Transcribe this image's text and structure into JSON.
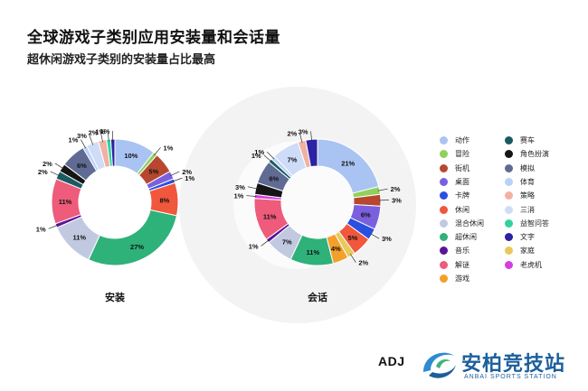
{
  "header": {
    "title": "全球游戏子类别应用安装量和会话量",
    "subtitle": "超休闲游戏子类别的安装量占比最高"
  },
  "legend": [
    {
      "label": "动作",
      "color": "#a9c4f2"
    },
    {
      "label": "赛车",
      "color": "#1a5b63"
    },
    {
      "label": "冒险",
      "color": "#8fd15c"
    },
    {
      "label": "角色扮演",
      "color": "#151515"
    },
    {
      "label": "街机",
      "color": "#b8472f"
    },
    {
      "label": "模拟",
      "color": "#5f6b93"
    },
    {
      "label": "桌面",
      "color": "#7a60de"
    },
    {
      "label": "体育",
      "color": "#b9d0f7"
    },
    {
      "label": "卡牌",
      "color": "#2950e0"
    },
    {
      "label": "策略",
      "color": "#f2b1a3"
    },
    {
      "label": "休闲",
      "color": "#f0573c"
    },
    {
      "label": "三消",
      "color": "#cfdcf7"
    },
    {
      "label": "混合休闲",
      "color": "#c1c9e1"
    },
    {
      "label": "益智问答",
      "color": "#2fd39d"
    },
    {
      "label": "超休闲",
      "color": "#2fb17a"
    },
    {
      "label": "文字",
      "color": "#2c22a3"
    },
    {
      "label": "音乐",
      "color": "#5a1498"
    },
    {
      "label": "家庭",
      "color": "#e7c95c"
    },
    {
      "label": "解谜",
      "color": "#ee5b7b"
    },
    {
      "label": "老虎机",
      "color": "#d63ee0"
    },
    {
      "label": "游戏",
      "color": "#f2a02b"
    }
  ],
  "chart_data": [
    {
      "type": "pie",
      "variant": "donut",
      "label": "安装",
      "slices": [
        {
          "name": "动作",
          "value": 10,
          "label": "10%",
          "color": "#a9c4f2"
        },
        {
          "name": "冒险",
          "value": 1,
          "label": "1%",
          "color": "#8fd15c"
        },
        {
          "name": "街机",
          "value": 5,
          "label": "5%",
          "color": "#b8472f"
        },
        {
          "name": "桌面",
          "value": 2,
          "label": "2%",
          "color": "#7a60de"
        },
        {
          "name": "卡牌",
          "value": 1,
          "label": "1%",
          "color": "#2950e0"
        },
        {
          "name": "休闲",
          "value": 8,
          "label": "8%",
          "color": "#f0573c"
        },
        {
          "name": "超休闲",
          "value": 27,
          "label": "27%",
          "color": "#2fb17a"
        },
        {
          "name": "混合休闲",
          "value": 11,
          "label": "11%",
          "color": "#c1c9e1"
        },
        {
          "name": "音乐",
          "value": 1,
          "label": "1%",
          "color": "#5a1498"
        },
        {
          "name": "解谜",
          "value": 11,
          "label": "11%",
          "color": "#ee5b7b"
        },
        {
          "name": "赛车",
          "value": 2,
          "label": "2%",
          "color": "#1a5b63"
        },
        {
          "name": "角色扮演",
          "value": 2,
          "label": "2%",
          "color": "#151515"
        },
        {
          "name": "模拟",
          "value": 6,
          "label": "6%",
          "color": "#5f6b93"
        },
        {
          "name": "体育",
          "value": 1,
          "label": "1%",
          "color": "#b9d0f7"
        },
        {
          "name": "三消",
          "value": 3,
          "label": "3%",
          "color": "#cfdcf7"
        },
        {
          "name": "策略",
          "value": 2,
          "label": "2%",
          "color": "#f2b1a3"
        },
        {
          "name": "益智问答",
          "value": 1,
          "label": "1%",
          "color": "#2fd39d"
        },
        {
          "name": "文字",
          "value": 1,
          "label": "1%",
          "color": "#2c22a3"
        }
      ]
    },
    {
      "type": "pie",
      "variant": "donut",
      "label": "会话",
      "slices": [
        {
          "name": "动作",
          "value": 21,
          "label": "21%",
          "color": "#a9c4f2"
        },
        {
          "name": "冒险",
          "value": 2,
          "label": "2%",
          "color": "#8fd15c"
        },
        {
          "name": "街机",
          "value": 3,
          "label": "3%",
          "color": "#b8472f"
        },
        {
          "name": "桌面",
          "value": 6,
          "label": "6%",
          "color": "#7a60de"
        },
        {
          "name": "卡牌",
          "value": 3,
          "label": "3%",
          "color": "#2950e0"
        },
        {
          "name": "休闲",
          "value": 5,
          "label": "5%",
          "color": "#f0573c"
        },
        {
          "name": "家庭",
          "value": 2,
          "label": "2%",
          "color": "#e7c95c"
        },
        {
          "name": "游戏",
          "value": 4,
          "label": "4%",
          "color": "#f2a02b"
        },
        {
          "name": "超休闲",
          "value": 11,
          "label": "11%",
          "color": "#2fb17a"
        },
        {
          "name": "混合休闲",
          "value": 7,
          "label": "7%",
          "color": "#c1c9e1"
        },
        {
          "name": "音乐",
          "value": 1,
          "label": "1%",
          "color": "#5a1498"
        },
        {
          "name": "解谜",
          "value": 11,
          "label": "11%",
          "color": "#ee5b7b"
        },
        {
          "name": "老虎机",
          "value": 1,
          "label": "1%",
          "color": "#d63ee0"
        },
        {
          "name": "角色扮演",
          "value": 3,
          "label": "3%",
          "color": "#151515"
        },
        {
          "name": "模拟",
          "value": 6,
          "label": "6%",
          "color": "#5f6b93"
        },
        {
          "name": "赛车",
          "value": 1,
          "label": "1%",
          "color": "#1a5b63"
        },
        {
          "name": "体育",
          "value": 1,
          "label": "1%",
          "color": "#b9d0f7"
        },
        {
          "name": "三消",
          "value": 7,
          "label": "7%",
          "color": "#cfdcf7"
        },
        {
          "name": "策略",
          "value": 2,
          "label": "2%",
          "color": "#f2b1a3"
        },
        {
          "name": "文字",
          "value": 3,
          "label": "3%",
          "color": "#2c22a3"
        }
      ]
    }
  ],
  "footer": {
    "adj_logo": "ADJ",
    "brand_name": "安柏竞技站",
    "brand_sub": "ANBAI SPORTS STATION"
  }
}
